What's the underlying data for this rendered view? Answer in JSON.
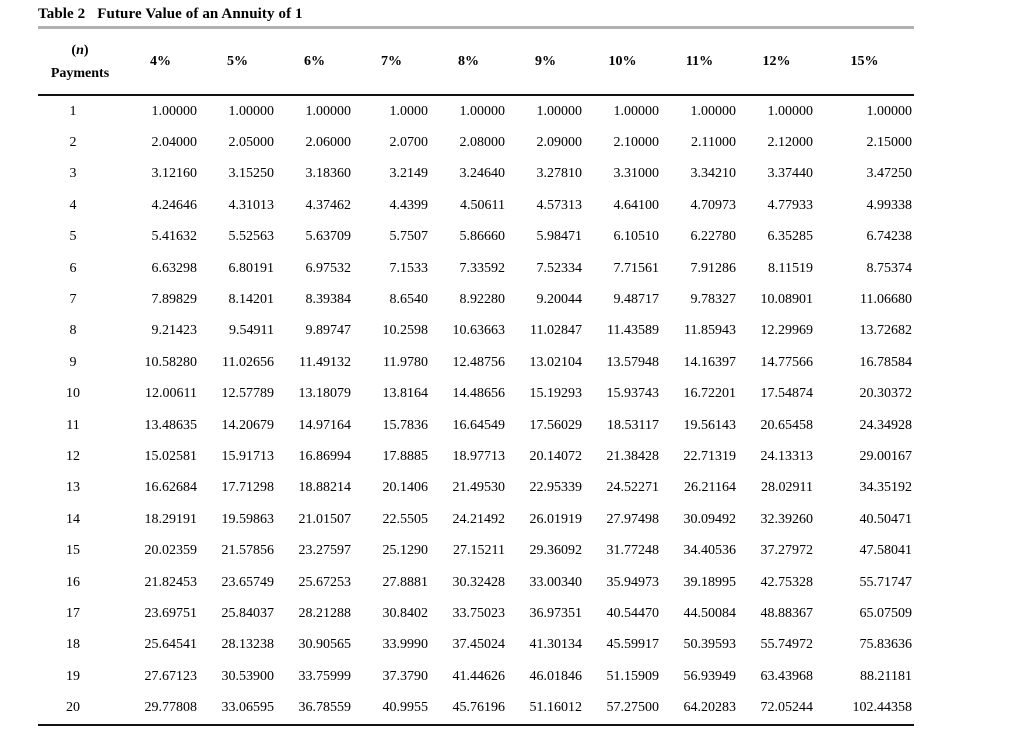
{
  "title": {
    "label": "Table 2",
    "text": "Future Value of an Annuity of 1"
  },
  "header": {
    "n_open": "(",
    "n_italic": "n",
    "n_close": ")",
    "payments_label": "Payments",
    "rate_columns": [
      "4%",
      "5%",
      "6%",
      "7%",
      "8%",
      "9%",
      "10%",
      "11%",
      "12%",
      "15%"
    ]
  },
  "colors": {
    "title_rule": "#b0b0b0",
    "table_rule": "#111111",
    "text": "#000000",
    "background": "#ffffff"
  },
  "rows": [
    [
      "1",
      "1.00000",
      "1.00000",
      "1.00000",
      "1.0000",
      "1.00000",
      "1.00000",
      "1.00000",
      "1.00000",
      "1.00000",
      "1.00000"
    ],
    [
      "2",
      "2.04000",
      "2.05000",
      "2.06000",
      "2.0700",
      "2.08000",
      "2.09000",
      "2.10000",
      "2.11000",
      "2.12000",
      "2.15000"
    ],
    [
      "3",
      "3.12160",
      "3.15250",
      "3.18360",
      "3.2149",
      "3.24640",
      "3.27810",
      "3.31000",
      "3.34210",
      "3.37440",
      "3.47250"
    ],
    [
      "4",
      "4.24646",
      "4.31013",
      "4.37462",
      "4.4399",
      "4.50611",
      "4.57313",
      "4.64100",
      "4.70973",
      "4.77933",
      "4.99338"
    ],
    [
      "5",
      "5.41632",
      "5.52563",
      "5.63709",
      "5.7507",
      "5.86660",
      "5.98471",
      "6.10510",
      "6.22780",
      "6.35285",
      "6.74238"
    ],
    [
      "6",
      "6.63298",
      "6.80191",
      "6.97532",
      "7.1533",
      "7.33592",
      "7.52334",
      "7.71561",
      "7.91286",
      "8.11519",
      "8.75374"
    ],
    [
      "7",
      "7.89829",
      "8.14201",
      "8.39384",
      "8.6540",
      "8.92280",
      "9.20044",
      "9.48717",
      "9.78327",
      "10.08901",
      "11.06680"
    ],
    [
      "8",
      "9.21423",
      "9.54911",
      "9.89747",
      "10.2598",
      "10.63663",
      "11.02847",
      "11.43589",
      "11.85943",
      "12.29969",
      "13.72682"
    ],
    [
      "9",
      "10.58280",
      "11.02656",
      "11.49132",
      "11.9780",
      "12.48756",
      "13.02104",
      "13.57948",
      "14.16397",
      "14.77566",
      "16.78584"
    ],
    [
      "10",
      "12.00611",
      "12.57789",
      "13.18079",
      "13.8164",
      "14.48656",
      "15.19293",
      "15.93743",
      "16.72201",
      "17.54874",
      "20.30372"
    ],
    [
      "11",
      "13.48635",
      "14.20679",
      "14.97164",
      "15.7836",
      "16.64549",
      "17.56029",
      "18.53117",
      "19.56143",
      "20.65458",
      "24.34928"
    ],
    [
      "12",
      "15.02581",
      "15.91713",
      "16.86994",
      "17.8885",
      "18.97713",
      "20.14072",
      "21.38428",
      "22.71319",
      "24.13313",
      "29.00167"
    ],
    [
      "13",
      "16.62684",
      "17.71298",
      "18.88214",
      "20.1406",
      "21.49530",
      "22.95339",
      "24.52271",
      "26.21164",
      "28.02911",
      "34.35192"
    ],
    [
      "14",
      "18.29191",
      "19.59863",
      "21.01507",
      "22.5505",
      "24.21492",
      "26.01919",
      "27.97498",
      "30.09492",
      "32.39260",
      "40.50471"
    ],
    [
      "15",
      "20.02359",
      "21.57856",
      "23.27597",
      "25.1290",
      "27.15211",
      "29.36092",
      "31.77248",
      "34.40536",
      "37.27972",
      "47.58041"
    ],
    [
      "16",
      "21.82453",
      "23.65749",
      "25.67253",
      "27.8881",
      "30.32428",
      "33.00340",
      "35.94973",
      "39.18995",
      "42.75328",
      "55.71747"
    ],
    [
      "17",
      "23.69751",
      "25.84037",
      "28.21288",
      "30.8402",
      "33.75023",
      "36.97351",
      "40.54470",
      "44.50084",
      "48.88367",
      "65.07509"
    ],
    [
      "18",
      "25.64541",
      "28.13238",
      "30.90565",
      "33.9990",
      "37.45024",
      "41.30134",
      "45.59917",
      "50.39593",
      "55.74972",
      "75.83636"
    ],
    [
      "19",
      "27.67123",
      "30.53900",
      "33.75999",
      "37.3790",
      "41.44626",
      "46.01846",
      "51.15909",
      "56.93949",
      "63.43968",
      "88.21181"
    ],
    [
      "20",
      "29.77808",
      "33.06595",
      "36.78559",
      "40.9955",
      "45.76196",
      "51.16012",
      "57.27500",
      "64.20283",
      "72.05244",
      "102.44358"
    ]
  ]
}
